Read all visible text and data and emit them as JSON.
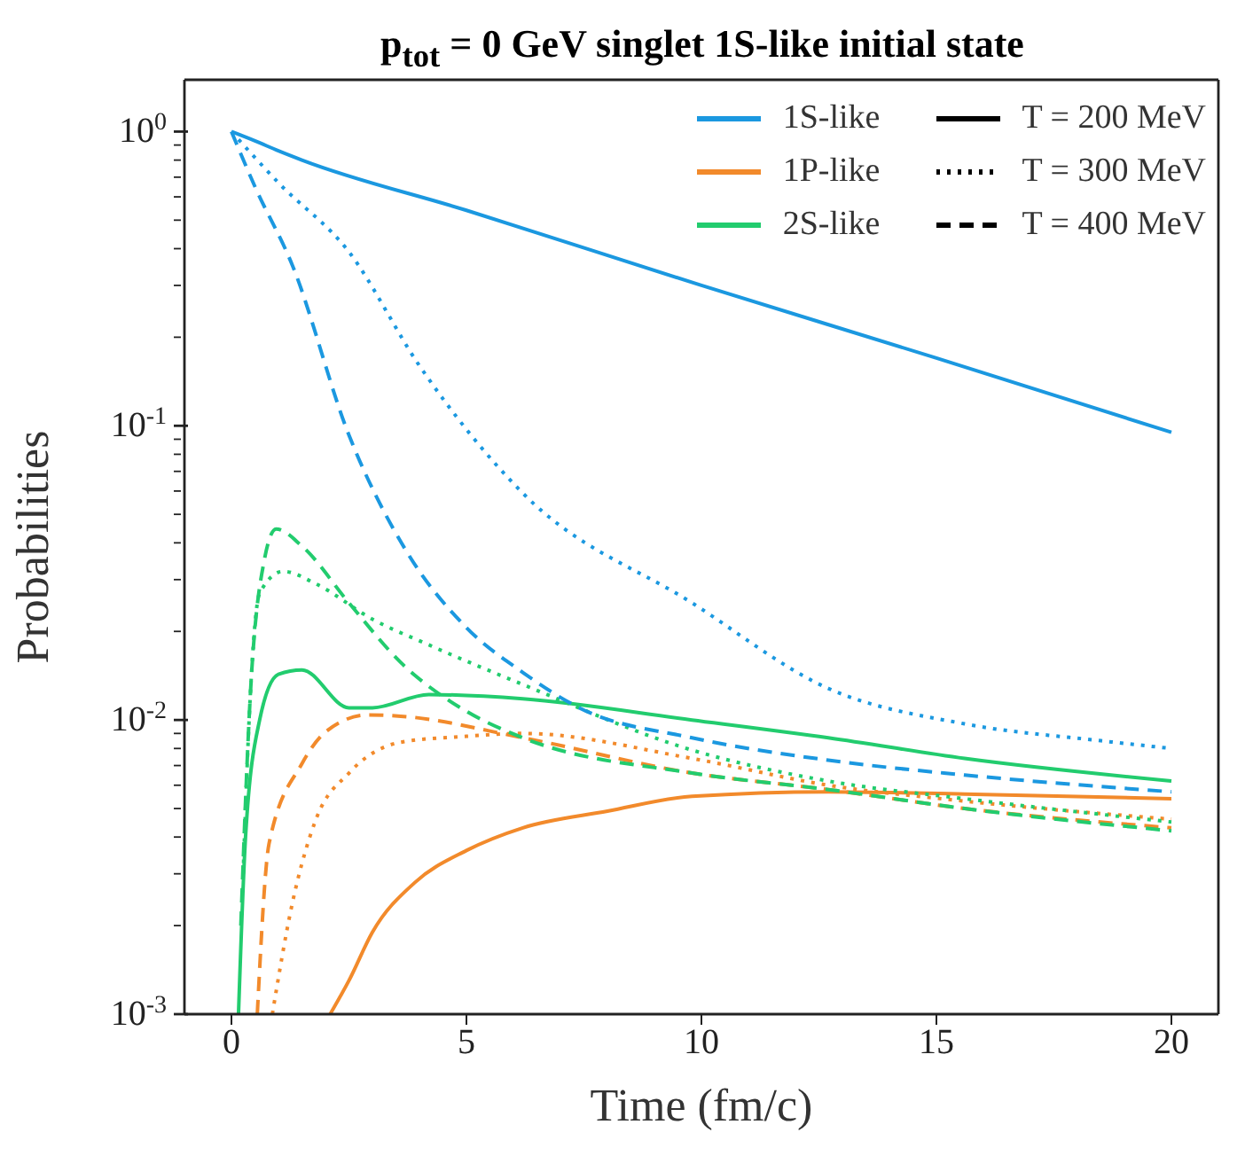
{
  "chart_data": {
    "type": "line",
    "title": "p$_{tot}$ = 0 GeV singlet 1S-like initial state",
    "xlabel": "Time (fm/c)",
    "ylabel": "Probabilities",
    "log": "y",
    "legend": "top right",
    "xlim": [
      -1,
      21
    ],
    "xticks": [
      0,
      5,
      10,
      15,
      20
    ],
    "ylim": [
      0.001,
      1.5
    ],
    "yticks": [
      {
        "value": 0.001,
        "label": "10$^{-3}$"
      },
      {
        "value": 0.002,
        "label": null
      },
      {
        "value": 0.003,
        "label": null
      },
      {
        "value": 0.004,
        "label": null
      },
      {
        "value": 0.005,
        "label": null
      },
      {
        "value": 0.006,
        "label": null
      },
      {
        "value": 0.007,
        "label": null
      },
      {
        "value": 0.008,
        "label": null
      },
      {
        "value": 0.009,
        "label": null
      },
      {
        "value": 0.01,
        "label": "10$^{-2}$"
      },
      {
        "value": 0.02,
        "label": null
      },
      {
        "value": 0.03,
        "label": null
      },
      {
        "value": 0.04,
        "label": null
      },
      {
        "value": 0.05,
        "label": null
      },
      {
        "value": 0.06,
        "label": null
      },
      {
        "value": 0.07,
        "label": null
      },
      {
        "value": 0.08,
        "label": null
      },
      {
        "value": 0.09,
        "label": null
      },
      {
        "value": 0.1,
        "label": "10$^{-1}$"
      },
      {
        "value": 0.2,
        "label": null
      },
      {
        "value": 0.3,
        "label": null
      },
      {
        "value": 0.4,
        "label": null
      },
      {
        "value": 0.5,
        "label": null
      },
      {
        "value": 0.6,
        "label": null
      },
      {
        "value": 0.7,
        "label": null
      },
      {
        "value": 0.8,
        "label": null
      },
      {
        "value": 0.9,
        "label": null
      },
      {
        "value": 1,
        "label": "10$^{0}$"
      }
    ],
    "annotations": [
      "T = 200 MeV",
      "T = 300 MeV",
      "T = 400 MeV"
    ],
    "series": [
      {
        "name": "1S-like",
        "color": "#1b98e0",
        "line_style": "solid",
        "x": [
          0,
          0.5,
          1,
          1.5,
          5,
          10,
          15,
          20
        ],
        "values": [
          1,
          0.93,
          0.86,
          0.8,
          0.54,
          0.3,
          0.17,
          0.095
        ]
      },
      {
        "name": "1P-like",
        "color": "#f28a2b",
        "line_style": "solid",
        "x": [
          2.1,
          2.5,
          3,
          3.9,
          5,
          6.2,
          8,
          9.8,
          12.7,
          15.6,
          20
        ],
        "values": [
          0.001,
          0.0013,
          0.0019,
          0.0028,
          0.0036,
          0.0043,
          0.0049,
          0.0055,
          0.0057,
          0.0056,
          0.0054
        ]
      },
      {
        "name": "2S-like",
        "color": "#22cc6e",
        "line_style": "solid",
        "x": [
          0.15,
          0.3,
          0.6,
          1,
          1.5,
          2.5,
          3,
          4.2,
          6.2,
          9.8,
          12.7,
          15.6,
          20
        ],
        "values": [
          0.001,
          0.004,
          0.01,
          0.0143,
          0.0148,
          0.011,
          0.011,
          0.0122,
          0.0118,
          0.01,
          0.0087,
          0.0074,
          0.0062
        ]
      },
      {
        "color": "#1b98e0",
        "line_style": "dotted",
        "x": [
          0,
          1,
          2.5,
          4,
          6.2,
          9.8,
          12.7,
          15.6,
          18.5,
          20
        ],
        "values": [
          1,
          0.67,
          0.39,
          0.16,
          0.059,
          0.025,
          0.0128,
          0.0097,
          0.0085,
          0.008
        ]
      },
      {
        "color": "#f28a2b",
        "line_style": "dotted",
        "x": [
          0.87,
          1.3,
          1.8,
          2.5,
          3.6,
          5,
          6.2,
          9.8,
          12.7,
          15.6,
          20
        ],
        "values": [
          0.001,
          0.0024,
          0.0046,
          0.0066,
          0.0084,
          0.0088,
          0.009,
          0.0074,
          0.006,
          0.0053,
          0.0046
        ]
      },
      {
        "color": "#22cc6e",
        "line_style": "dotted",
        "x": [
          0.25,
          0.4,
          0.6,
          1.1,
          1.8,
          3,
          4.2,
          6.2,
          9.8,
          12.7,
          15.6,
          20
        ],
        "values": [
          0.003,
          0.012,
          0.027,
          0.032,
          0.029,
          0.022,
          0.018,
          0.0132,
          0.0079,
          0.0062,
          0.0054,
          0.0045
        ]
      },
      {
        "color": "#1b98e0",
        "line_style": "dashed",
        "x": [
          0,
          0.5,
          1.3,
          2.5,
          3.7,
          5,
          6.2,
          7.4,
          9.8,
          12.7,
          15.6,
          20
        ],
        "values": [
          1,
          0.65,
          0.35,
          0.093,
          0.038,
          0.0206,
          0.0145,
          0.011,
          0.0087,
          0.0073,
          0.0065,
          0.0057
        ]
      },
      {
        "color": "#f28a2b",
        "line_style": "dashed",
        "x": [
          0.55,
          0.8,
          1.5,
          2,
          2.9,
          3.6,
          6.2,
          9.8,
          12.7,
          15.6,
          20
        ],
        "values": [
          0.001,
          0.0038,
          0.0071,
          0.0091,
          0.0104,
          0.0103,
          0.0087,
          0.0066,
          0.0058,
          0.005,
          0.0043
        ]
      },
      {
        "color": "#22cc6e",
        "line_style": "dashed",
        "x": [
          0.2,
          0.4,
          0.7,
          0.95,
          1.5,
          2.5,
          3.6,
          5,
          6.2,
          9.8,
          12.7,
          15.6,
          20
        ],
        "values": [
          0.002,
          0.012,
          0.035,
          0.0446,
          0.039,
          0.025,
          0.0157,
          0.0107,
          0.0087,
          0.0066,
          0.0058,
          0.005,
          0.0042
        ]
      }
    ]
  }
}
